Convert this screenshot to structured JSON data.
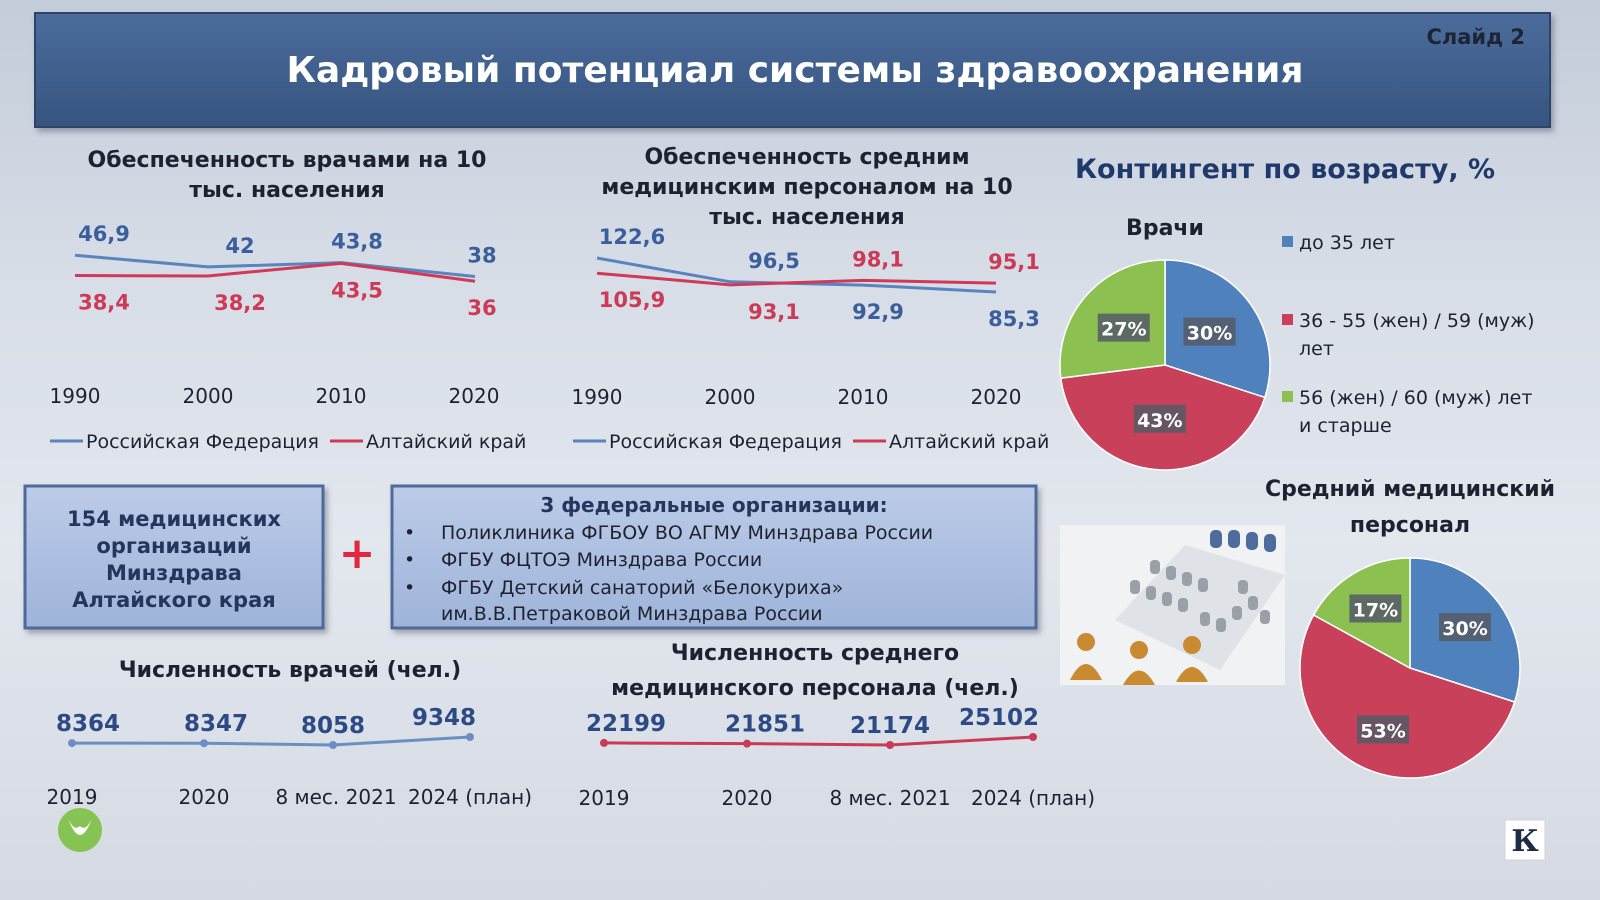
{
  "header": {
    "title": "Кадровый потенциал системы здравоохранения",
    "slide_label": "Слайд 2"
  },
  "colors": {
    "rf": "#5a84bd",
    "altai": "#d03a59",
    "pie_blue": "#4f81bd",
    "pie_red": "#c8405a",
    "pie_green": "#8cc152",
    "header_bg": "#3f5f8e",
    "box_bg": "#a9bde0"
  },
  "legend_line": {
    "rf": "Российская Федерация",
    "altai": "Алтайский край"
  },
  "age": {
    "title": "Контингент по возрасту, %",
    "legend": [
      "до 35 лет",
      "36 - 55 (жен) / 59 (муж)",
      "лет",
      "56 (жен) / 60 (муж) лет",
      "и старше"
    ]
  },
  "boxes": {
    "left": [
      "154 медицинских",
      "организаций",
      "Минздрава",
      "Алтайского края"
    ],
    "plus": "+",
    "right_title": "3 федеральные организации:",
    "right_items": [
      "Поликлиника ФГБОУ ВО АГМУ Минздрава России",
      "ФГБУ ФЦТОЭ Минздрава России",
      "ФГБУ Детский санаторий «Белокуриха»"
    ],
    "right_item_cont": "им.В.В.Петраковой Минздрава России"
  },
  "logo_letter": "К",
  "chart_data": [
    {
      "type": "line",
      "title_lines": [
        "Обеспеченность врачами на 10",
        "тыс. населения"
      ],
      "x": [
        "1990",
        "2000",
        "2010",
        "2020"
      ],
      "series": [
        {
          "name": "Российская Федерация",
          "values": [
            46.9,
            42,
            43.8,
            38
          ],
          "labels": [
            "46,9",
            "42",
            "43,8",
            "38"
          ]
        },
        {
          "name": "Алтайский край",
          "values": [
            38.4,
            38.2,
            43.5,
            36
          ],
          "labels": [
            "38,4",
            "38,2",
            "43,5",
            "36"
          ]
        }
      ]
    },
    {
      "type": "line",
      "title_lines": [
        "Обеспеченность средним",
        "медицинским персоналом на 10",
        "тыс. населения"
      ],
      "x": [
        "1990",
        "2000",
        "2010",
        "2020"
      ],
      "series": [
        {
          "name": "Российская Федерация",
          "values": [
            122.6,
            96.5,
            92.9,
            85.3
          ],
          "labels": [
            "122,6",
            "96,5",
            "92,9",
            "85,3"
          ]
        },
        {
          "name": "Алтайский край",
          "values": [
            105.9,
            93.1,
            98.1,
            95.1
          ],
          "labels": [
            "105,9",
            "93,1",
            "98,1",
            "95,1"
          ]
        }
      ]
    },
    {
      "type": "line",
      "title_lines": [
        "Численность врачей (чел.)"
      ],
      "x": [
        "2019",
        "2020",
        "8 мес. 2021",
        "2024 (план)"
      ],
      "series": [
        {
          "values": [
            8364,
            8347,
            8058,
            9348
          ],
          "labels": [
            "8364",
            "8347",
            "8058",
            "9348"
          ]
        }
      ]
    },
    {
      "type": "line",
      "title_lines": [
        "Численность среднего",
        "медицинского персонала (чел.)"
      ],
      "x": [
        "2019",
        "2020",
        "8 мес. 2021",
        "2024 (план)"
      ],
      "series": [
        {
          "values": [
            22199,
            21851,
            21174,
            25102
          ],
          "labels": [
            "22199",
            "21851",
            "21174",
            "25102"
          ]
        }
      ]
    },
    {
      "type": "pie",
      "title": "Врачи",
      "categories": [
        "до 35 лет",
        "36 - 55 (жен) / 59 (муж) лет",
        "56 (жен) / 60 (муж) лет и старше"
      ],
      "values": [
        30,
        43,
        27
      ],
      "labels": [
        "30%",
        "43%",
        "27%"
      ]
    },
    {
      "type": "pie",
      "title_lines": [
        "Средний медицинский",
        "персонал"
      ],
      "categories": [
        "до 35 лет",
        "36 - 55 (жен) / 59 (муж) лет",
        "56 (жен) / 60 (муж) лет и старше"
      ],
      "values": [
        30,
        53,
        17
      ],
      "labels": [
        "30%",
        "53%",
        "17%"
      ]
    }
  ]
}
